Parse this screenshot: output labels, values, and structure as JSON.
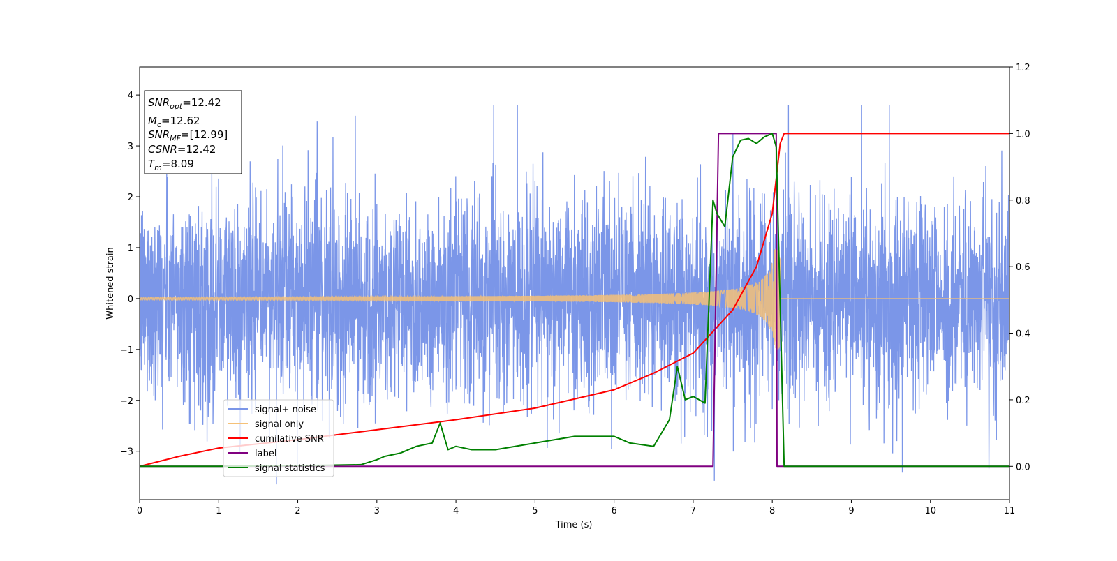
{
  "chart_data": {
    "type": "line",
    "xlabel": "Time (s)",
    "ylabel": "Whitened strain",
    "xlim": [
      0,
      11
    ],
    "ylim_left": [
      -3.95,
      4.55
    ],
    "ylim_right": [
      -0.1,
      1.2
    ],
    "x_ticks": [
      "0",
      "1",
      "2",
      "3",
      "4",
      "5",
      "6",
      "7",
      "8",
      "9",
      "10",
      "11"
    ],
    "y_ticks_left": [
      "−3",
      "−2",
      "−1",
      "0",
      "1",
      "2",
      "3",
      "4"
    ],
    "y_ticks_right": [
      "0.0",
      "0.2",
      "0.4",
      "0.6",
      "0.8",
      "1.0",
      "1.2"
    ],
    "grid": false,
    "legend_position": "lower-left",
    "info_box": {
      "snr_opt": {
        "sym": "SNR",
        "sub": "opt",
        "value": "=12.42"
      },
      "mc": {
        "sym": "M",
        "sub": "c",
        "value": "=12.62"
      },
      "snr_mf": {
        "sym": "SNR",
        "sub": "MF",
        "value": "=[12.99]"
      },
      "csnr": {
        "sym": "CSNR",
        "value": "=12.42"
      },
      "tm": {
        "sym": "T",
        "sub": "m",
        "value": "=8.09"
      }
    },
    "series": [
      {
        "name": "signal+ noise",
        "axis": "left",
        "color": "#7b96e8",
        "description": "whitened noise with std ~1, spiking to about ±3.7 across 0–11 s"
      },
      {
        "name": "signal only",
        "axis": "left",
        "color": "#f5c178",
        "chirp": {
          "start": 0,
          "merger": 8.1,
          "end": 11,
          "amp_start": 0.03,
          "amp_peak": 1.0
        }
      },
      {
        "name": "cumilative SNR",
        "axis": "right",
        "color": "#ff0000",
        "x": [
          0,
          0.5,
          1,
          2,
          3,
          4,
          5,
          6,
          6.5,
          7,
          7.5,
          7.8,
          8.0,
          8.1,
          8.15,
          11
        ],
        "y": [
          0.0,
          0.03,
          0.055,
          0.08,
          0.11,
          0.14,
          0.175,
          0.23,
          0.28,
          0.34,
          0.47,
          0.6,
          0.76,
          0.97,
          1.0,
          1.0
        ]
      },
      {
        "name": "label",
        "axis": "right",
        "color": "#800080",
        "x": [
          0,
          7.25,
          7.32,
          8.05,
          8.06,
          11
        ],
        "y": [
          0,
          0,
          1,
          1,
          0,
          0
        ]
      },
      {
        "name": "signal statistics",
        "axis": "right",
        "color": "#008000",
        "x": [
          0,
          1,
          2,
          2.8,
          3.0,
          3.1,
          3.3,
          3.5,
          3.7,
          3.8,
          3.9,
          4.0,
          4.2,
          4.5,
          5.0,
          5.5,
          6.0,
          6.2,
          6.5,
          6.7,
          6.8,
          6.9,
          7.0,
          7.15,
          7.25,
          7.3,
          7.4,
          7.5,
          7.6,
          7.7,
          7.8,
          7.9,
          8.0,
          8.05,
          8.15,
          8.2,
          11
        ],
        "y": [
          0,
          0,
          0.002,
          0.005,
          0.02,
          0.03,
          0.04,
          0.06,
          0.07,
          0.13,
          0.05,
          0.06,
          0.05,
          0.05,
          0.07,
          0.09,
          0.09,
          0.07,
          0.06,
          0.14,
          0.3,
          0.2,
          0.21,
          0.19,
          0.8,
          0.76,
          0.72,
          0.93,
          0.98,
          0.985,
          0.97,
          0.99,
          1.0,
          0.96,
          0.0,
          0.0,
          0.0
        ]
      }
    ]
  }
}
